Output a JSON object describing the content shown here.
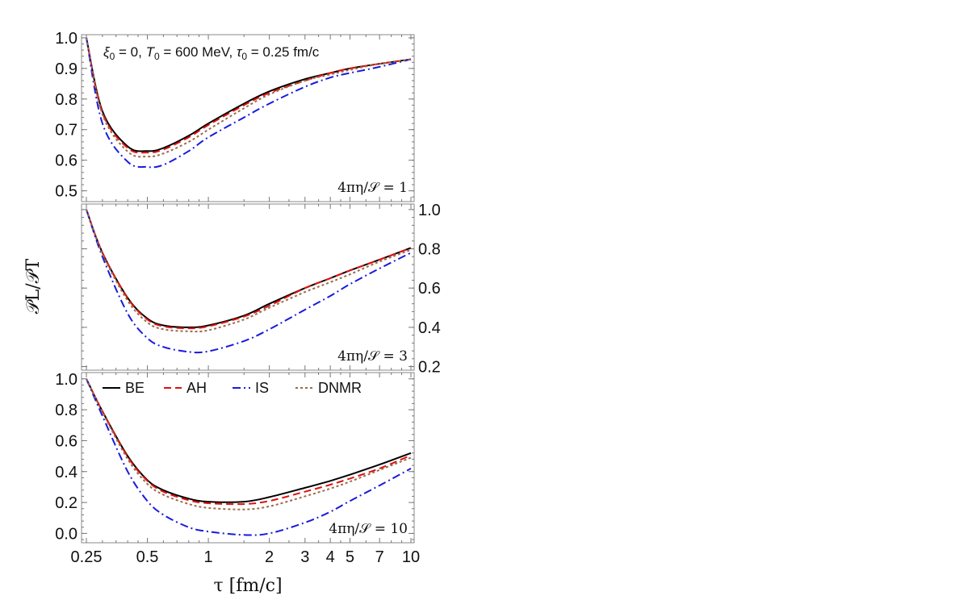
{
  "chart_data": {
    "type": "line",
    "title_annotation": {
      "parts": [
        "ξ",
        "0",
        " = 0, ",
        "T",
        "0",
        " = 600 MeV, ",
        "τ",
        "0",
        " = 0.25 fm/c"
      ]
    },
    "ylabel": "𝒫L/𝒫T",
    "xlabel": "τ [fm/c]",
    "xscale": "log",
    "xlim": [
      0.25,
      10
    ],
    "xticks": [
      0.25,
      0.5,
      1,
      2,
      3,
      4,
      5,
      7,
      10
    ],
    "xtick_labels": [
      "0.25",
      "0.5",
      "1",
      "2",
      "3",
      "4",
      "5",
      "7",
      "10"
    ],
    "legend": {
      "placement": "top-left of bottom panel",
      "entries": [
        "BE",
        "AH",
        "IS",
        "DNMR"
      ]
    },
    "series_styles": [
      {
        "name": "BE",
        "color": "#000000",
        "dash": ""
      },
      {
        "name": "AH",
        "color": "#e01010",
        "dash": "9,5"
      },
      {
        "name": "IS",
        "color": "#1a1adc",
        "dash": "10,4,2,4"
      },
      {
        "name": "DNMR",
        "color": "#9a6a4a",
        "dash": "3,3"
      }
    ],
    "panels": [
      {
        "label": "4πη/𝒮 = 1",
        "label_parts": [
          "4πη/𝒮",
          " = 1"
        ],
        "ylim": [
          0.47,
          1.005
        ],
        "yticks": [
          0.5,
          0.6,
          0.7,
          0.8,
          0.9,
          1.0
        ],
        "ytick_labels": [
          "0.5",
          "0.6",
          "0.7",
          "0.8",
          "0.9",
          "1.0"
        ],
        "yaxis_side": "left",
        "x": [
          0.25,
          0.3,
          0.4,
          0.5,
          0.6,
          0.8,
          1,
          1.5,
          2,
          3,
          4,
          5,
          7,
          10
        ],
        "series": [
          {
            "name": "BE",
            "values": [
              1.0,
              0.76,
              0.645,
              0.63,
              0.64,
              0.68,
              0.72,
              0.785,
              0.825,
              0.865,
              0.885,
              0.9,
              0.915,
              0.93
            ]
          },
          {
            "name": "AH",
            "values": [
              1.0,
              0.755,
              0.64,
              0.625,
              0.635,
              0.675,
              0.715,
              0.78,
              0.82,
              0.86,
              0.885,
              0.9,
              0.915,
              0.93
            ]
          },
          {
            "name": "IS",
            "values": [
              1.0,
              0.72,
              0.595,
              0.578,
              0.585,
              0.63,
              0.675,
              0.74,
              0.785,
              0.84,
              0.87,
              0.885,
              0.905,
              0.93
            ]
          },
          {
            "name": "DNMR",
            "values": [
              1.0,
              0.75,
              0.628,
              0.612,
              0.622,
              0.66,
              0.7,
              0.77,
              0.815,
              0.86,
              0.88,
              0.895,
              0.915,
              0.93
            ]
          }
        ]
      },
      {
        "label": "4πη/𝒮 = 3",
        "label_parts": [
          "4πη/𝒮",
          " = 3"
        ],
        "ylim": [
          0.19,
          1.02
        ],
        "yticks": [
          0.2,
          0.4,
          0.6,
          0.8,
          1.0
        ],
        "ytick_labels": [
          "0.2",
          "0.4",
          "0.6",
          "0.8",
          "1.0"
        ],
        "yaxis_side": "right",
        "x": [
          0.25,
          0.3,
          0.4,
          0.5,
          0.6,
          0.8,
          1,
          1.5,
          2,
          3,
          4,
          5,
          7,
          10
        ],
        "series": [
          {
            "name": "BE",
            "values": [
              1.0,
              0.78,
              0.55,
              0.445,
              0.41,
              0.4,
              0.41,
              0.46,
              0.52,
              0.6,
              0.65,
              0.69,
              0.745,
              0.805
            ]
          },
          {
            "name": "AH",
            "values": [
              1.0,
              0.78,
              0.548,
              0.44,
              0.405,
              0.395,
              0.405,
              0.455,
              0.51,
              0.6,
              0.65,
              0.69,
              0.745,
              0.805
            ]
          },
          {
            "name": "IS",
            "values": [
              1.0,
              0.76,
              0.47,
              0.345,
              0.3,
              0.275,
              0.278,
              0.33,
              0.39,
              0.49,
              0.56,
              0.62,
              0.7,
              0.78
            ]
          },
          {
            "name": "DNMR",
            "values": [
              1.0,
              0.775,
              0.535,
              0.425,
              0.39,
              0.38,
              0.385,
              0.44,
              0.5,
              0.58,
              0.63,
              0.67,
              0.735,
              0.795
            ]
          }
        ]
      },
      {
        "label": "4πη/𝒮 = 10",
        "label_parts": [
          "4πη/𝒮",
          " = 10"
        ],
        "ylim": [
          -0.05,
          1.03
        ],
        "yticks": [
          0.0,
          0.2,
          0.4,
          0.6,
          0.8,
          1.0
        ],
        "ytick_labels": [
          "0.0",
          "0.2",
          "0.4",
          "0.6",
          "0.8",
          "1.0"
        ],
        "yaxis_side": "left",
        "x": [
          0.25,
          0.3,
          0.4,
          0.5,
          0.6,
          0.8,
          1,
          1.5,
          2,
          3,
          4,
          5,
          7,
          10
        ],
        "series": [
          {
            "name": "BE",
            "values": [
              1.0,
              0.79,
              0.5,
              0.345,
              0.28,
              0.225,
              0.205,
              0.205,
              0.235,
              0.295,
              0.34,
              0.38,
              0.445,
              0.52
            ]
          },
          {
            "name": "AH",
            "values": [
              1.0,
              0.79,
              0.495,
              0.34,
              0.27,
              0.215,
              0.195,
              0.19,
              0.21,
              0.27,
              0.315,
              0.355,
              0.42,
              0.505
            ]
          },
          {
            "name": "IS",
            "values": [
              1.0,
              0.76,
              0.4,
              0.21,
              0.12,
              0.04,
              0.012,
              -0.01,
              0.0,
              0.07,
              0.14,
              0.21,
              0.31,
              0.42
            ]
          },
          {
            "name": "DNMR",
            "values": [
              1.0,
              0.785,
              0.48,
              0.32,
              0.25,
              0.19,
              0.165,
              0.155,
              0.175,
              0.24,
              0.29,
              0.335,
              0.41,
              0.49
            ]
          }
        ]
      }
    ]
  }
}
